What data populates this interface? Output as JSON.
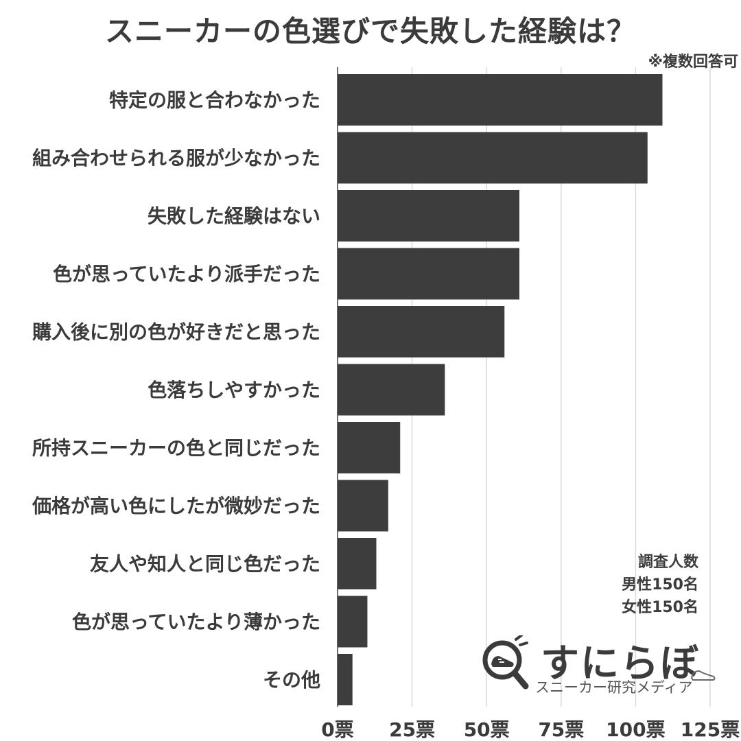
{
  "title": "スニーカーの色選びで失敗した経験は？",
  "note": "※複数回答可",
  "survey": {
    "line1": "調査人数",
    "line2": "男性150名",
    "line3": "女性150名"
  },
  "brand": {
    "name": "すにらぼ",
    "subtitle": "スニーカー研究メディア",
    "icon": "magnifier-sneaker-icon"
  },
  "colors": {
    "bar": "#3d3d3d",
    "grid": "#d9d9d9",
    "text": "#3b3b3b"
  },
  "chart_data": {
    "type": "bar",
    "orientation": "horizontal",
    "title": "スニーカーの色選びで失敗した経験は？",
    "categories": [
      "特定の服と合わなかった",
      "組み合わせられる服が少なかった",
      "失敗した経験はない",
      "色が思っていたより派手だった",
      "購入後に別の色が好きだと思った",
      "色落ちしやすかった",
      "所持スニーカーの色と同じだった",
      "価格が高い色にしたが微妙だった",
      "友人や知人と同じ色だった",
      "色が思っていたより薄かった",
      "その他"
    ],
    "values": [
      109,
      104,
      61,
      61,
      56,
      36,
      21,
      17,
      13,
      10,
      5
    ],
    "xlim": [
      0,
      125
    ],
    "xticks": [
      0,
      25,
      50,
      75,
      100,
      125
    ],
    "xtick_labels": [
      "0票",
      "25票",
      "50票",
      "75票",
      "100票",
      "125票"
    ],
    "grid": "vertical"
  }
}
